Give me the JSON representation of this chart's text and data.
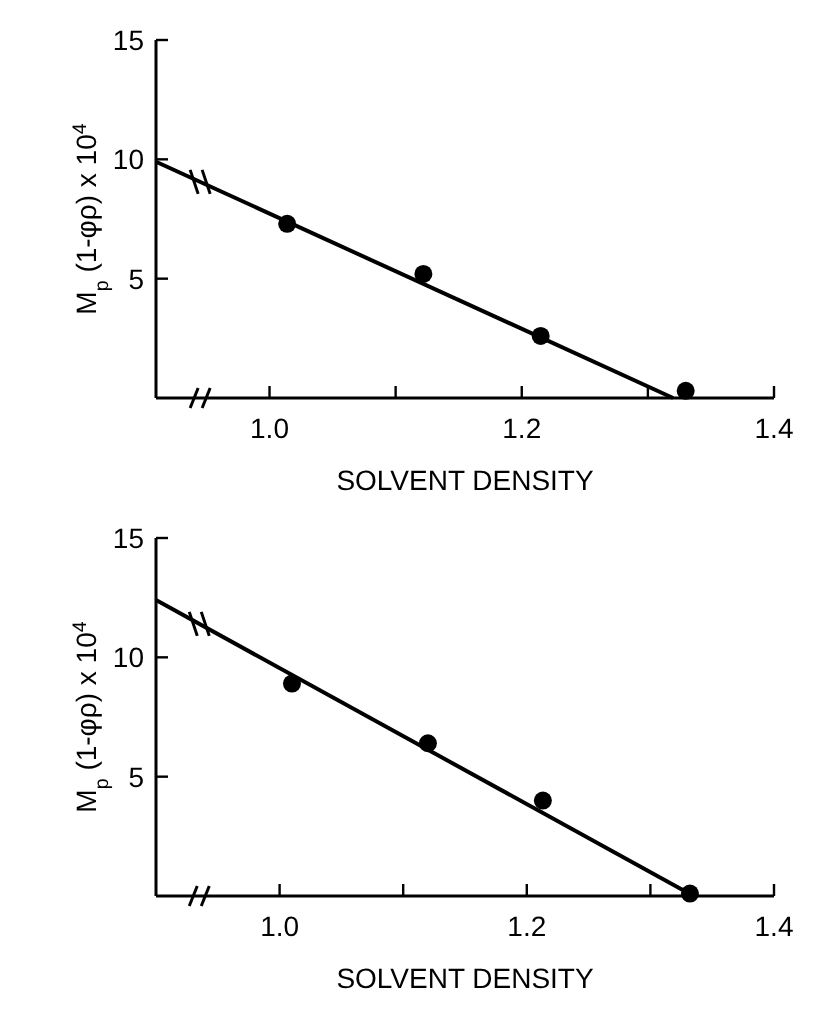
{
  "chart_data": [
    {
      "type": "scatter",
      "xlabel": "SOLVENT DENSITY",
      "ylabel": "M$_{p}$ (1-φρ) x 10$^{4}$",
      "xlim": [
        0.91,
        1.4
      ],
      "ylim": [
        0,
        15
      ],
      "xticks": [
        {
          "value": 1.0,
          "label": "1.0"
        },
        {
          "value": 1.1,
          "label": null
        },
        {
          "value": 1.2,
          "label": "1.2"
        },
        {
          "value": 1.3,
          "label": null
        },
        {
          "value": 1.4,
          "label": "1.4"
        }
      ],
      "yticks": [
        5,
        10,
        15
      ],
      "grid": false,
      "series": [
        {
          "marker": "circle",
          "color": "#000000",
          "x": [
            1.014,
            1.122,
            1.215,
            1.33
          ],
          "values": [
            7.3,
            5.2,
            2.6,
            0.3
          ]
        },
        {
          "type": "line",
          "marker": "none",
          "color": "#000000",
          "line_style": "solid",
          "x": [
            0.91,
            1.32
          ],
          "values": [
            9.9,
            0
          ]
        }
      ]
    },
    {
      "type": "scatter",
      "xlabel": "SOLVENT DENSITY",
      "ylabel": "M$_{p}$ (1-φρ) x 10$^{4}$",
      "xlim": [
        0.9,
        1.4
      ],
      "ylim": [
        0,
        15
      ],
      "xticks": [
        {
          "value": 1.0,
          "label": "1.0"
        },
        {
          "value": 1.1,
          "label": null
        },
        {
          "value": 1.2,
          "label": "1.2"
        },
        {
          "value": 1.3,
          "label": null
        },
        {
          "value": 1.4,
          "label": "1.4"
        }
      ],
      "yticks": [
        5,
        10,
        15
      ],
      "grid": false,
      "series": [
        {
          "marker": "circle",
          "color": "#000000",
          "x": [
            1.01,
            1.12,
            1.213,
            1.332
          ],
          "values": [
            8.9,
            6.4,
            4.0,
            0.1
          ]
        },
        {
          "type": "line",
          "marker": "none",
          "color": "#000000",
          "line_style": "solid",
          "x": [
            0.9,
            1.335
          ],
          "values": [
            12.4,
            0
          ]
        }
      ]
    }
  ]
}
